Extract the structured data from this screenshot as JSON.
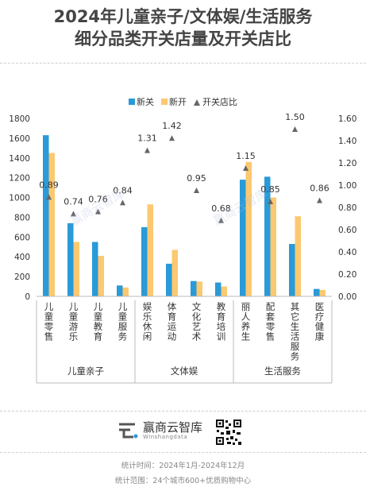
{
  "header": {
    "title_line1": "2024年儿童亲子/文体娱/生活服务",
    "title_line2": "细分品类开关店量及开关店比"
  },
  "chart_data": {
    "type": "bar",
    "categories": [
      "儿童零售",
      "儿童游乐",
      "儿童教育",
      "儿童服务",
      "娱乐休闲",
      "体育运动",
      "文化艺术",
      "教育培训",
      "丽人养生",
      "配套零售",
      "其它生活服务",
      "医疗健康"
    ],
    "groups": [
      {
        "name": "儿童亲子",
        "count": 4
      },
      {
        "name": "文体娱",
        "count": 4
      },
      {
        "name": "生活服务",
        "count": 4
      }
    ],
    "series": [
      {
        "name": "新关",
        "type": "bar",
        "axis": "left",
        "color": "#2a9ad8",
        "values": [
          1630,
          740,
          550,
          110,
          700,
          330,
          155,
          140,
          1180,
          1210,
          530,
          75
        ]
      },
      {
        "name": "新开",
        "type": "bar",
        "axis": "left",
        "color": "#fcc870",
        "values": [
          1450,
          550,
          410,
          90,
          930,
          470,
          150,
          100,
          1360,
          1000,
          810,
          65
        ]
      },
      {
        "name": "开关店比",
        "type": "scatter",
        "axis": "right",
        "color": "#666666",
        "marker": "triangle",
        "values": [
          0.89,
          0.74,
          0.76,
          0.84,
          1.31,
          1.42,
          0.95,
          0.68,
          1.15,
          0.85,
          1.5,
          0.86
        ],
        "labels": [
          "0.89",
          "0.74",
          "0.76",
          "0.84",
          "1.31",
          "1.42",
          "0.95",
          "0.68",
          "1.15",
          "0.85",
          "1.50",
          "0.86"
        ]
      }
    ],
    "y_left": {
      "min": 0,
      "max": 1800,
      "ticks": [
        "0",
        "200",
        "400",
        "600",
        "800",
        "1000",
        "1200",
        "1400",
        "1600",
        "1800"
      ]
    },
    "y_right": {
      "min": 0,
      "max": 1.6,
      "ticks": [
        "0.00",
        "0.20",
        "0.40",
        "0.60",
        "0.80",
        "1.00",
        "1.20",
        "1.40",
        "1.60"
      ]
    },
    "legend_position": "top"
  },
  "watermarks": [
    "赢商云智库",
    "赢商云智库"
  ],
  "footer": {
    "brand_name": "赢商云智库",
    "brand_sub": "Winshangdata",
    "stat_time": "统计时间：2024年1月-2024年12月",
    "stat_scope": "统计范围：24个城市600+优质购物中心"
  }
}
